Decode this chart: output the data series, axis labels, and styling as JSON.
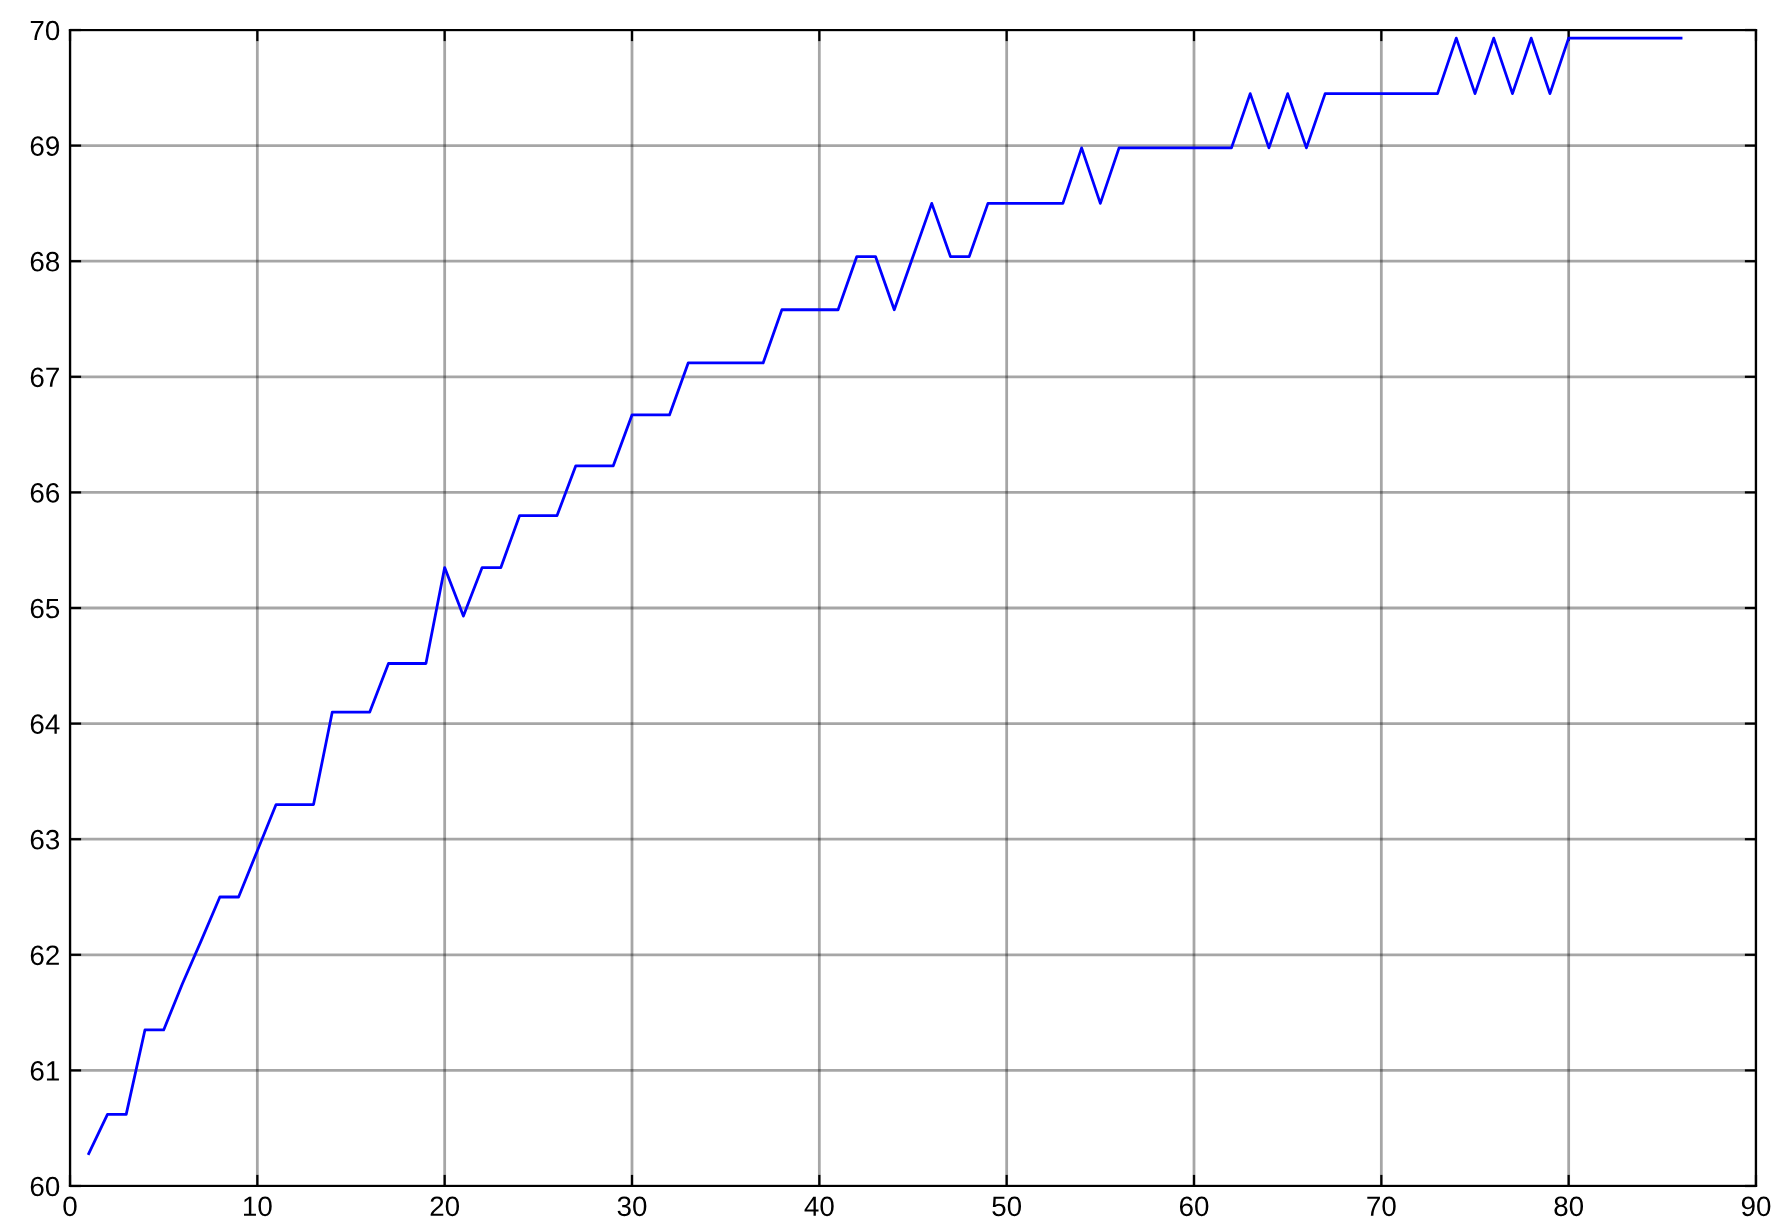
{
  "chart_data": {
    "type": "line",
    "x": [
      1,
      2,
      3,
      4,
      5,
      6,
      7,
      8,
      9,
      10,
      11,
      12,
      13,
      14,
      15,
      16,
      17,
      18,
      19,
      20,
      21,
      22,
      23,
      24,
      25,
      26,
      27,
      28,
      29,
      30,
      31,
      32,
      33,
      34,
      35,
      36,
      37,
      38,
      39,
      40,
      41,
      42,
      43,
      44,
      45,
      46,
      47,
      48,
      49,
      50,
      51,
      52,
      53,
      54,
      55,
      56,
      57,
      58,
      59,
      60,
      61,
      62,
      63,
      64,
      65,
      66,
      67,
      68,
      69,
      70,
      71,
      72,
      73,
      74,
      75,
      76,
      77,
      78,
      79,
      80,
      81,
      82,
      83,
      84,
      85,
      86
    ],
    "series": [
      {
        "color": "#0000ff",
        "values": [
          60.28,
          60.62,
          60.62,
          61.35,
          61.35,
          61.75,
          62.12,
          62.5,
          62.5,
          62.9,
          63.3,
          63.3,
          63.3,
          64.1,
          64.1,
          64.1,
          64.52,
          64.52,
          64.52,
          65.35,
          64.93,
          65.35,
          65.35,
          65.8,
          65.8,
          65.8,
          66.23,
          66.23,
          66.23,
          66.67,
          66.67,
          66.67,
          67.12,
          67.12,
          67.12,
          67.12,
          67.12,
          67.58,
          67.58,
          67.58,
          67.58,
          68.04,
          68.04,
          67.58,
          68.04,
          68.5,
          68.04,
          68.04,
          68.5,
          68.5,
          68.5,
          68.5,
          68.5,
          68.98,
          68.5,
          68.98,
          68.98,
          68.98,
          68.98,
          68.98,
          68.98,
          68.98,
          69.45,
          68.98,
          69.45,
          68.98,
          69.45,
          69.45,
          69.45,
          69.45,
          69.45,
          69.45,
          69.45,
          69.93,
          69.45,
          69.93,
          69.45,
          69.93,
          69.45,
          69.93,
          69.93,
          69.93,
          69.93,
          69.93,
          69.93,
          69.93
        ]
      }
    ],
    "xlim": [
      0,
      90
    ],
    "ylim": [
      60,
      70
    ],
    "xticks": [
      0,
      10,
      20,
      30,
      40,
      50,
      60,
      70,
      80,
      90
    ],
    "yticks": [
      60,
      61,
      62,
      63,
      64,
      65,
      66,
      67,
      68,
      69,
      70
    ],
    "grid": true,
    "line_style": "solid"
  }
}
